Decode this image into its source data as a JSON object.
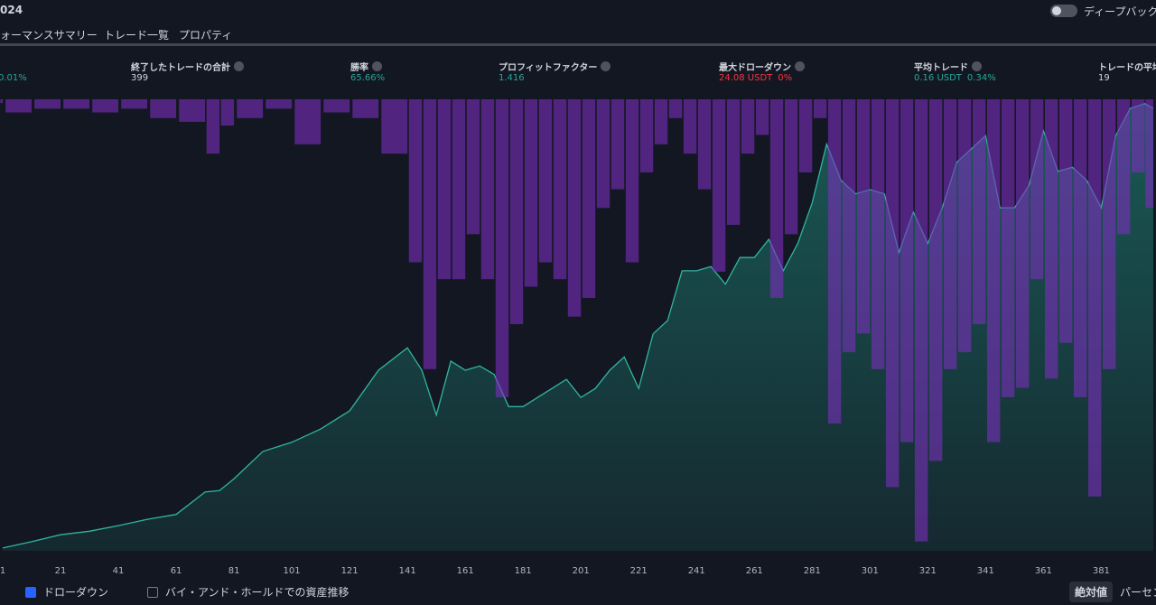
{
  "header": {
    "title": "024",
    "toggle_label": "ディープバックテ"
  },
  "tabs": [
    "ォーマンスサマリー",
    "トレード一覧",
    "プロパティ"
  ],
  "stats": [
    {
      "values": [
        "0.01%"
      ]
    },
    {
      "label": "終了したトレードの合計",
      "values": [
        "399"
      ]
    },
    {
      "label": "勝率",
      "values": [
        "65.66%"
      ]
    },
    {
      "label": "プロフィットファクター",
      "values": [
        "1.416"
      ]
    },
    {
      "label": "最大ドローダウン",
      "values": [
        "24.08 USDT",
        "0%"
      ]
    },
    {
      "label": "平均トレード",
      "values": [
        "0.16 USDT",
        "0.34%"
      ]
    },
    {
      "label": "トレードの平均",
      "values": [
        "19"
      ]
    }
  ],
  "chart_data": {
    "type": "area",
    "x": [
      1,
      11,
      21,
      31,
      41,
      51,
      61,
      71,
      76,
      81,
      91,
      101,
      111,
      121,
      131,
      141,
      146,
      151,
      156,
      161,
      166,
      171,
      176,
      181,
      186,
      191,
      196,
      201,
      206,
      211,
      216,
      221,
      226,
      231,
      236,
      241,
      246,
      251,
      256,
      261,
      266,
      271,
      276,
      281,
      286,
      291,
      296,
      301,
      306,
      311,
      316,
      321,
      326,
      331,
      336,
      341,
      346,
      351,
      356,
      361,
      366,
      371,
      376,
      381,
      386,
      391,
      396,
      399
    ],
    "xlim": [
      1,
      399
    ],
    "xticks": [
      1,
      21,
      41,
      61,
      81,
      101,
      121,
      141,
      161,
      181,
      201,
      221,
      241,
      261,
      281,
      301,
      321,
      341,
      361,
      381
    ],
    "ylim": [
      0,
      64.5
    ],
    "y2lim": [
      0,
      24.1
    ],
    "series": [
      {
        "color": "#2fb5a0",
        "values": [
          0.4,
          1.3,
          2.3,
          2.8,
          3.6,
          4.5,
          5.2,
          8.4,
          8.6,
          10.3,
          14.2,
          15.5,
          17.4,
          20.0,
          25.8,
          29.0,
          25.8,
          19.4,
          27.1,
          25.8,
          26.4,
          25.2,
          20.6,
          20.6,
          21.9,
          23.2,
          24.5,
          21.9,
          23.2,
          25.8,
          27.7,
          23.2,
          31.0,
          32.9,
          40.0,
          40.0,
          40.6,
          38.1,
          41.9,
          41.9,
          44.5,
          40.0,
          43.9,
          49.7,
          58.1,
          52.9,
          51.0,
          51.6,
          51.0,
          42.6,
          48.4,
          43.9,
          49.0,
          55.5,
          57.4,
          59.3,
          49.0,
          49.0,
          52.2,
          60.0,
          54.2,
          54.8,
          52.9,
          49.0,
          59.3,
          63.2,
          63.9,
          63.2
        ]
      },
      {
        "name": "ドローダウン",
        "color": "#7b2fbe",
        "axis": "y2",
        "values": [
          0.2,
          0.7,
          0.5,
          0.5,
          0.7,
          0.5,
          1.0,
          1.2,
          2.9,
          1.4,
          1.0,
          0.5,
          2.4,
          0.7,
          1.0,
          2.9,
          8.7,
          14.4,
          9.6,
          9.6,
          7.2,
          9.6,
          15.9,
          12.0,
          10.0,
          8.7,
          9.6,
          11.6,
          10.6,
          5.8,
          4.8,
          8.7,
          3.9,
          2.4,
          1.0,
          2.9,
          4.8,
          9.2,
          6.7,
          2.9,
          1.9,
          10.6,
          7.2,
          3.9,
          1.0,
          17.3,
          13.5,
          12.5,
          14.4,
          20.7,
          18.3,
          23.6,
          19.3,
          14.4,
          13.5,
          12.0,
          18.3,
          15.9,
          15.4,
          9.6,
          14.9,
          13.0,
          15.9,
          21.2,
          14.4,
          7.2,
          3.9,
          5.8
        ]
      }
    ],
    "legend_buy_hold": "バイ・アンド・ホールドでの資産推移"
  },
  "buttons": [
    "絶対値",
    "パーセン"
  ]
}
